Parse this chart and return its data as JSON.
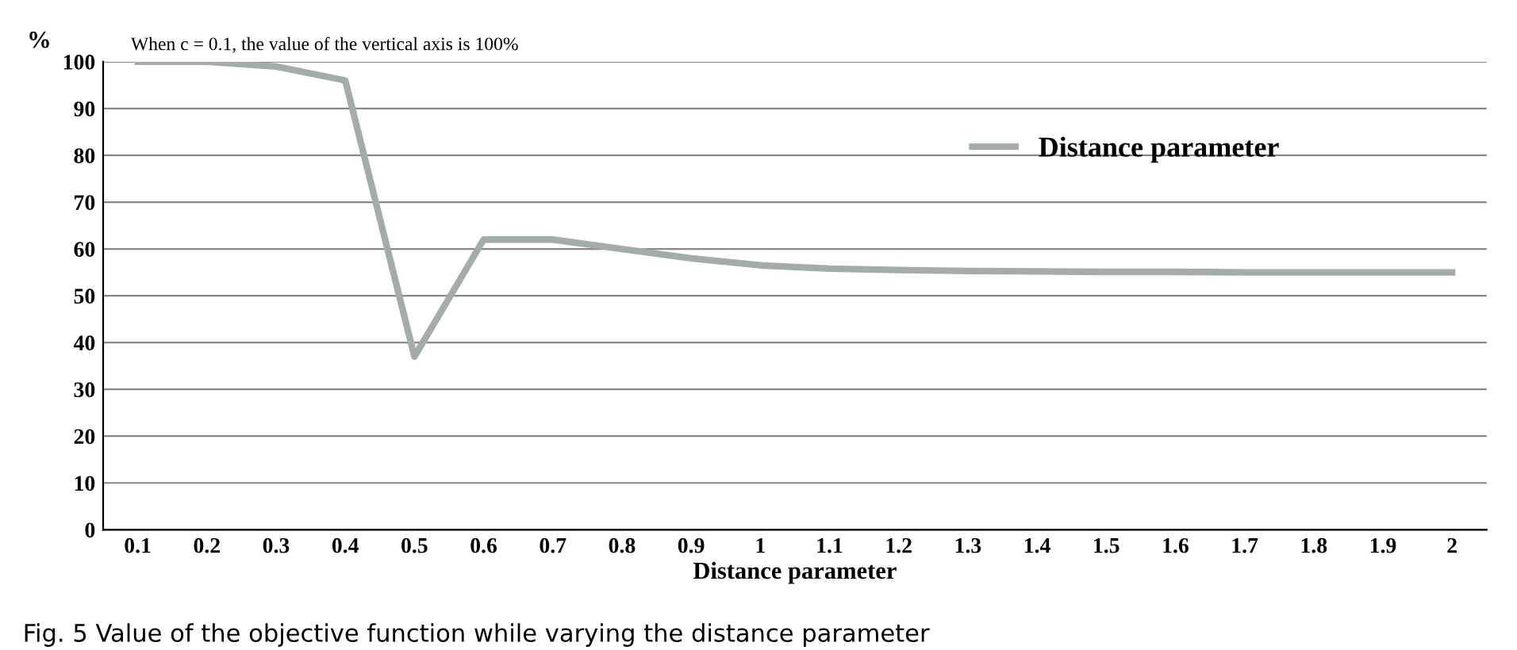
{
  "chart_data": {
    "type": "line",
    "categories": [
      "0.1",
      "0.2",
      "0.3",
      "0.4",
      "0.5",
      "0.6",
      "0.7",
      "0.8",
      "0.9",
      "1",
      "1.1",
      "1.2",
      "1.3",
      "1.4",
      "1.5",
      "1.6",
      "1.7",
      "1.8",
      "1.9",
      "2"
    ],
    "series": [
      {
        "name": "Distance parameter",
        "color": "#a3abab",
        "values": [
          100,
          100,
          99,
          96,
          37,
          62,
          62,
          60,
          58,
          56.5,
          55.8,
          55.5,
          55.3,
          55.2,
          55.1,
          55.1,
          55,
          55,
          55,
          55
        ]
      }
    ],
    "xlabel": "Distance parameter",
    "ylabel": "%",
    "ylim": [
      0,
      100
    ],
    "yticks": [
      0,
      10,
      20,
      30,
      40,
      50,
      60,
      70,
      80,
      90,
      100
    ],
    "grid": "y",
    "legend": "top right",
    "marker": "none",
    "line_style": "solid",
    "annotations": [
      "When c = 0.1, the value of the vertical axis is 100%",
      "Fig. 5 Value of the objective function while varying the distance parameter"
    ]
  }
}
